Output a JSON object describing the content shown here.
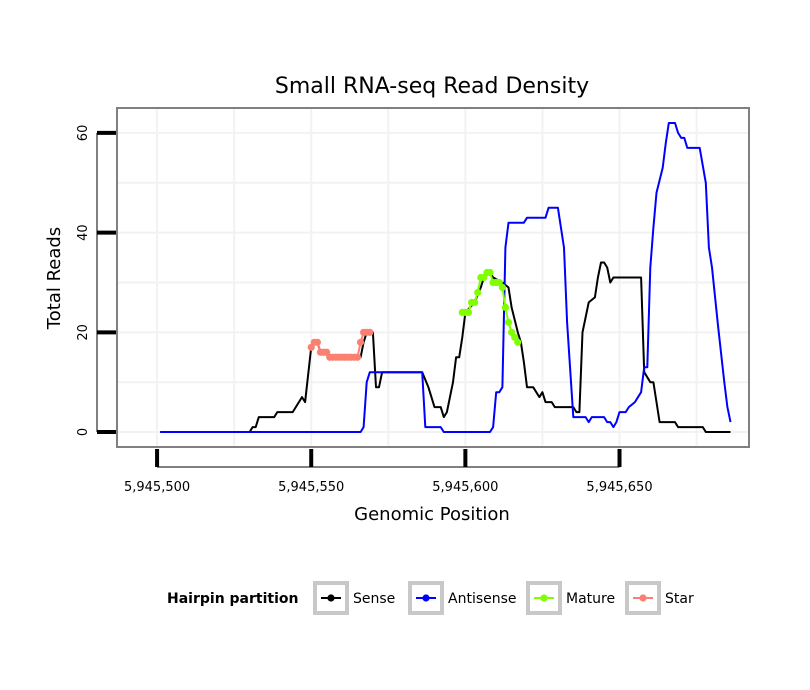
{
  "chart_data": {
    "type": "line",
    "title": "Small RNA-seq Read Density",
    "xlabel": "Genomic Position",
    "ylabel": "Total Reads",
    "xlim": [
      5945487,
      5945692
    ],
    "ylim": [
      -3,
      65
    ],
    "x_ticks": [
      5945500,
      5945550,
      5945600,
      5945650
    ],
    "x_tick_labels": [
      "5,945,500",
      "5,945,550",
      "5,945,600",
      "5,945,650"
    ],
    "y_ticks": [
      0,
      20,
      40,
      60
    ],
    "y_tick_labels": [
      "0",
      "20",
      "40",
      "60"
    ],
    "grid": true,
    "legend": {
      "title": "Hairpin partition",
      "position": "bottom",
      "entries": [
        {
          "label": "Sense",
          "color": "#000000"
        },
        {
          "label": "Antisense",
          "color": "#0000ff"
        },
        {
          "label": "Mature",
          "color": "#7fff00"
        },
        {
          "label": "Star",
          "color": "#fa8072"
        }
      ]
    },
    "series": [
      {
        "name": "Sense",
        "color": "#000000",
        "markers": false,
        "points": [
          [
            5945501,
            0
          ],
          [
            5945530,
            0
          ],
          [
            5945531,
            1
          ],
          [
            5945532,
            1
          ],
          [
            5945533,
            3
          ],
          [
            5945538,
            3
          ],
          [
            5945539,
            4
          ],
          [
            5945544,
            4
          ],
          [
            5945545,
            5
          ],
          [
            5945547,
            7
          ],
          [
            5945548,
            6
          ],
          [
            5945550,
            17
          ],
          [
            5945551,
            18
          ],
          [
            5945552,
            18
          ],
          [
            5945553,
            16
          ],
          [
            5945555,
            16
          ],
          [
            5945556,
            15
          ],
          [
            5945566,
            15
          ],
          [
            5945567,
            18
          ],
          [
            5945568,
            20
          ],
          [
            5945570,
            20
          ],
          [
            5945571,
            9
          ],
          [
            5945572,
            9
          ],
          [
            5945573,
            12
          ],
          [
            5945586,
            12
          ],
          [
            5945588,
            9
          ],
          [
            5945590,
            5
          ],
          [
            5945592,
            5
          ],
          [
            5945593,
            3
          ],
          [
            5945594,
            4
          ],
          [
            5945596,
            10
          ],
          [
            5945597,
            15
          ],
          [
            5945598,
            15
          ],
          [
            5945599,
            19
          ],
          [
            5945600,
            24
          ],
          [
            5945603,
            26
          ],
          [
            5945605,
            29
          ],
          [
            5945606,
            31
          ],
          [
            5945608,
            32
          ],
          [
            5945609,
            31
          ],
          [
            5945612,
            30
          ],
          [
            5945614,
            29
          ],
          [
            5945615,
            25
          ],
          [
            5945617,
            20
          ],
          [
            5945618,
            18
          ],
          [
            5945619,
            14
          ],
          [
            5945620,
            9
          ],
          [
            5945622,
            9
          ],
          [
            5945623,
            8
          ],
          [
            5945624,
            7
          ],
          [
            5945625,
            8
          ],
          [
            5945626,
            6
          ],
          [
            5945628,
            6
          ],
          [
            5945629,
            5
          ],
          [
            5945635,
            5
          ],
          [
            5945636,
            4
          ],
          [
            5945637,
            4
          ],
          [
            5945638,
            20
          ],
          [
            5945639,
            23
          ],
          [
            5945640,
            26
          ],
          [
            5945642,
            27
          ],
          [
            5945643,
            31
          ],
          [
            5945644,
            34
          ],
          [
            5945645,
            34
          ],
          [
            5945646,
            33
          ],
          [
            5945647,
            30
          ],
          [
            5945648,
            31
          ],
          [
            5945657,
            31
          ],
          [
            5945658,
            12
          ],
          [
            5945660,
            10
          ],
          [
            5945661,
            10
          ],
          [
            5945662,
            6
          ],
          [
            5945663,
            2
          ],
          [
            5945668,
            2
          ],
          [
            5945669,
            1
          ],
          [
            5945677,
            1
          ],
          [
            5945678,
            0
          ],
          [
            5945686,
            0
          ]
        ]
      },
      {
        "name": "Antisense",
        "color": "#0000ff",
        "markers": false,
        "points": [
          [
            5945501,
            0
          ],
          [
            5945566,
            0
          ],
          [
            5945567,
            1
          ],
          [
            5945568,
            10
          ],
          [
            5945569,
            12
          ],
          [
            5945586,
            12
          ],
          [
            5945587,
            1
          ],
          [
            5945592,
            1
          ],
          [
            5945593,
            0
          ],
          [
            5945608,
            0
          ],
          [
            5945609,
            1
          ],
          [
            5945610,
            8
          ],
          [
            5945611,
            8
          ],
          [
            5945612,
            9
          ],
          [
            5945613,
            37
          ],
          [
            5945614,
            42
          ],
          [
            5945619,
            42
          ],
          [
            5945620,
            43
          ],
          [
            5945626,
            43
          ],
          [
            5945627,
            45
          ],
          [
            5945630,
            45
          ],
          [
            5945632,
            37
          ],
          [
            5945633,
            22
          ],
          [
            5945635,
            3
          ],
          [
            5945639,
            3
          ],
          [
            5945640,
            2
          ],
          [
            5945641,
            3
          ],
          [
            5945645,
            3
          ],
          [
            5945646,
            2
          ],
          [
            5945647,
            2
          ],
          [
            5945648,
            1
          ],
          [
            5945649,
            2
          ],
          [
            5945650,
            4
          ],
          [
            5945652,
            4
          ],
          [
            5945653,
            5
          ],
          [
            5945655,
            6
          ],
          [
            5945657,
            8
          ],
          [
            5945658,
            13
          ],
          [
            5945659,
            13
          ],
          [
            5945660,
            33
          ],
          [
            5945661,
            41
          ],
          [
            5945662,
            48
          ],
          [
            5945664,
            53
          ],
          [
            5945665,
            58
          ],
          [
            5945666,
            62
          ],
          [
            5945668,
            62
          ],
          [
            5945669,
            60
          ],
          [
            5945670,
            59
          ],
          [
            5945671,
            59
          ],
          [
            5945672,
            57
          ],
          [
            5945676,
            57
          ],
          [
            5945678,
            50
          ],
          [
            5945679,
            37
          ],
          [
            5945680,
            33
          ],
          [
            5945682,
            21
          ],
          [
            5945684,
            10
          ],
          [
            5945685,
            5
          ],
          [
            5945686,
            2
          ]
        ]
      },
      {
        "name": "Mature",
        "color": "#7fff00",
        "markers": true,
        "points": [
          [
            5945599,
            24
          ],
          [
            5945600,
            24
          ],
          [
            5945601,
            24
          ],
          [
            5945602,
            26
          ],
          [
            5945603,
            26
          ],
          [
            5945604,
            28
          ],
          [
            5945605,
            31
          ],
          [
            5945606,
            31
          ],
          [
            5945607,
            32
          ],
          [
            5945608,
            32
          ],
          [
            5945609,
            30
          ],
          [
            5945610,
            30
          ],
          [
            5945611,
            30
          ],
          [
            5945612,
            29
          ],
          [
            5945613,
            25
          ],
          [
            5945614,
            22
          ],
          [
            5945615,
            20
          ],
          [
            5945616,
            19
          ],
          [
            5945617,
            18
          ]
        ]
      },
      {
        "name": "Star",
        "color": "#fa8072",
        "markers": true,
        "points": [
          [
            5945550,
            17
          ],
          [
            5945551,
            18
          ],
          [
            5945552,
            18
          ],
          [
            5945553,
            16
          ],
          [
            5945554,
            16
          ],
          [
            5945555,
            16
          ],
          [
            5945556,
            15
          ],
          [
            5945557,
            15
          ],
          [
            5945558,
            15
          ],
          [
            5945559,
            15
          ],
          [
            5945560,
            15
          ],
          [
            5945561,
            15
          ],
          [
            5945562,
            15
          ],
          [
            5945563,
            15
          ],
          [
            5945564,
            15
          ],
          [
            5945565,
            15
          ],
          [
            5945566,
            18
          ],
          [
            5945567,
            20
          ],
          [
            5945568,
            20
          ],
          [
            5945569,
            20
          ]
        ]
      }
    ]
  }
}
